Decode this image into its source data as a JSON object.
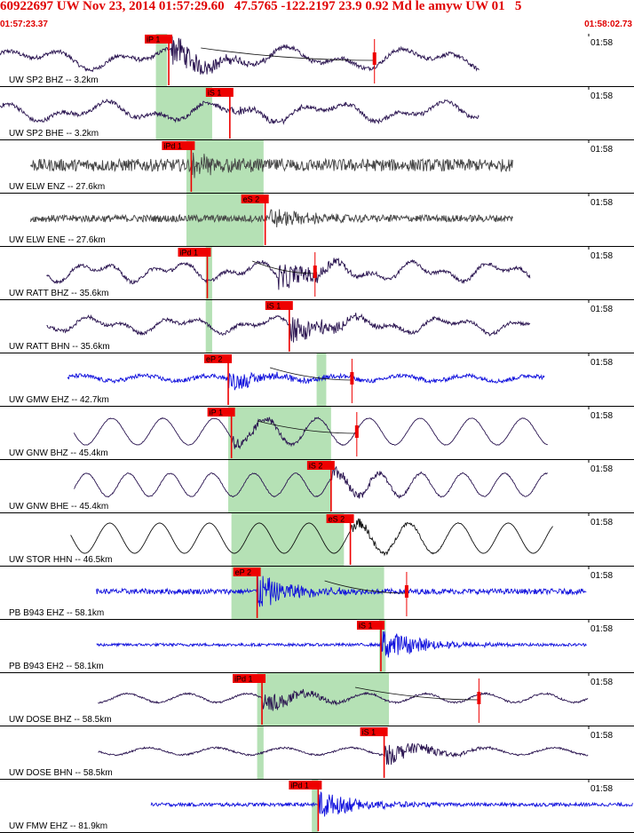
{
  "header": {
    "title": "60922697 UW Nov 23, 2014 01:57:29.60   47.5765 -122.2197 23.9 0.92 Md le amyw UW 01   5",
    "start_time": "01:57:23.37",
    "end_time": "01:58:02.73"
  },
  "chart_data": {
    "type": "line",
    "title": "60922697 UW Nov 23, 2014 01:57:29.60   47.5765 -122.2197 23.9 0.92 Md le amyw UW 01   5",
    "xlabel": "",
    "ylabel": "",
    "x_start": "01:57:23.37",
    "x_end": "01:58:02.73",
    "xlim_seconds": [
      0,
      39.36
    ],
    "tick_label": "01:58",
    "tick_second": 36.63,
    "colors": {
      "dark": "#2a1450",
      "gray": "#444444",
      "blue": "#1010dd",
      "black": "#111111",
      "pick": "#ee0000",
      "window": "#a8dca8"
    },
    "traces": [
      {
        "label": "UW SP2 BHZ -- 3.2km",
        "color": "dark",
        "start": 0.0,
        "end": 29.8,
        "noise": 0.12,
        "waves": [
          [
            8,
            0.35,
            0
          ],
          [
            3.5,
            0.3,
            1
          ]
        ],
        "event_t": 10.6,
        "event_amp": 0.9,
        "s_window": [
          9.7,
          10.4
        ],
        "pick": {
          "label": "iP 1",
          "t": 10.5
        },
        "picks2": [
          {
            "t": 23.3
          }
        ],
        "coda_t": 12.5,
        "coda_end": 23.3
      },
      {
        "label": "UW SP2 BHE -- 3.2km",
        "color": "dark",
        "start": 0.0,
        "end": 29.8,
        "noise": 0.12,
        "waves": [
          [
            7,
            0.35,
            2
          ],
          [
            3,
            0.25,
            0
          ]
        ],
        "event_t": 14.3,
        "event_amp": 0.25,
        "s_window": [
          9.7,
          13.2
        ],
        "pick": {
          "label": "iS 1",
          "t": 14.3
        }
      },
      {
        "label": "UW ELW ENZ -- 27.6km",
        "color": "gray",
        "start": 1.9,
        "end": 31.9,
        "noise": 0.35,
        "waves": [],
        "event_t": 11.9,
        "event_amp": 0.5,
        "s_window": [
          11.6,
          16.4
        ],
        "pick": {
          "label": "iPd 1",
          "t": 11.9
        }
      },
      {
        "label": "UW ELW ENE -- 27.6km",
        "color": "gray",
        "start": 1.9,
        "end": 31.9,
        "noise": 0.2,
        "waves": [],
        "event_t": 16.8,
        "event_amp": 0.5,
        "s_window": [
          11.6,
          16.4
        ],
        "pick": {
          "label": "eS 2",
          "t": 16.5
        }
      },
      {
        "label": "UW RATT BHZ -- 35.6km",
        "color": "dark",
        "start": 2.9,
        "end": 33.0,
        "noise": 0.1,
        "waves": [
          [
            5,
            0.35,
            0.4
          ],
          [
            2.3,
            0.25,
            1
          ]
        ],
        "event_t": 17.3,
        "event_amp": 0.8,
        "s_window": [
          12.8,
          13.2
        ],
        "pick": {
          "label": "iPd 1",
          "t": 12.9
        },
        "picks2": [
          {
            "t": 19.6
          }
        ],
        "coda_t": 15.7,
        "coda_end": 19.6
      },
      {
        "label": "UW RATT BHN -- 35.6km",
        "color": "dark",
        "start": 2.9,
        "end": 33.0,
        "noise": 0.1,
        "waves": [
          [
            5.5,
            0.3,
            1.2
          ],
          [
            2.4,
            0.2,
            0.2
          ]
        ],
        "event_t": 18.0,
        "event_amp": 0.8,
        "s_window": [
          12.8,
          13.2
        ],
        "pick": {
          "label": "iS 1",
          "t": 18.0
        }
      },
      {
        "label": "UW GMW EHZ -- 42.7km",
        "color": "blue",
        "start": 4.2,
        "end": 33.9,
        "noise": 0.12,
        "waves": [
          [
            4,
            0.15,
            0
          ]
        ],
        "event_t": 14.2,
        "event_amp": 0.5,
        "s_window": [
          19.7,
          20.3
        ],
        "pick": {
          "label": "eP 2",
          "t": 14.2
        },
        "picks2": [
          {
            "t": 21.9
          }
        ],
        "coda_t": 16.8,
        "coda_end": 21.9
      },
      {
        "label": "UW GNW BHZ -- 45.4km",
        "color": "dark",
        "start": 4.6,
        "end": 34.1,
        "noise": 0.02,
        "waves": [
          [
            3.2,
            0.75,
            0.5
          ]
        ],
        "event_t": 14.4,
        "event_amp": 0.4,
        "s_window": [
          14.2,
          20.6
        ],
        "pick": {
          "label": "iP 1",
          "t": 14.4
        },
        "picks2": [
          {
            "t": 22.2
          }
        ],
        "coda_t": 16.0,
        "coda_end": 22.2
      },
      {
        "label": "UW GNW BHE -- 45.4km",
        "color": "dark",
        "start": 4.6,
        "end": 34.1,
        "noise": 0.03,
        "waves": [
          [
            2.6,
            0.65,
            1.1
          ]
        ],
        "event_t": 20.6,
        "event_amp": 0.4,
        "s_window": [
          14.2,
          20.6
        ],
        "pick": {
          "label": "iS 2",
          "t": 20.6
        }
      },
      {
        "label": "UW STOR HHN -- 46.5km",
        "color": "black",
        "start": 4.4,
        "end": 34.4,
        "noise": 0.0,
        "waves": [
          [
            3.1,
            0.85,
            0.3
          ]
        ],
        "event_t": 21.8,
        "event_amp": 0.3,
        "s_window": [
          14.4,
          21.4
        ],
        "pick": {
          "label": "eS 2",
          "t": 21.8
        }
      },
      {
        "label": "PB B943 EHZ -- 58.1km",
        "color": "blue",
        "start": 6.0,
        "end": 36.5,
        "noise": 0.15,
        "waves": [],
        "event_t": 16.0,
        "event_amp": 0.9,
        "s_window": [
          14.4,
          23.9
        ],
        "pick": {
          "label": "eP 2",
          "t": 16.0
        },
        "picks2": [
          {
            "t": 25.3
          }
        ],
        "coda_t": 20.2,
        "coda_end": 25.3
      },
      {
        "label": "PB B943 EH2 -- 58.1km",
        "color": "blue",
        "start": 6.0,
        "end": 36.5,
        "noise": 0.08,
        "waves": [],
        "event_t": 23.7,
        "event_amp": 0.9,
        "s_window": [
          23.6,
          24.0
        ],
        "pick": {
          "label": "iS 1",
          "t": 23.7
        }
      },
      {
        "label": "UW DOSE BHZ -- 58.5km",
        "color": "dark",
        "start": 6.1,
        "end": 36.6,
        "noise": 0.05,
        "waves": [
          [
            3.7,
            0.25,
            0.6
          ]
        ],
        "event_t": 16.3,
        "event_amp": 0.6,
        "s_window": [
          16.0,
          24.2
        ],
        "pick": {
          "label": "iPd 1",
          "t": 16.3
        },
        "picks2": [
          {
            "t": 29.8
          }
        ],
        "coda_t": 22.1,
        "coda_end": 29.8
      },
      {
        "label": "UW DOSE BHN -- 58.5km",
        "color": "dark",
        "start": 6.1,
        "end": 36.6,
        "noise": 0.05,
        "waves": [
          [
            4.2,
            0.2,
            0.3
          ]
        ],
        "event_t": 23.9,
        "event_amp": 0.6,
        "s_window": [
          16.0,
          16.4
        ],
        "pick": {
          "label": "iS 1",
          "t": 23.9
        }
      },
      {
        "label": "UW FMW EHZ -- 81.9km",
        "color": "blue",
        "start": 9.4,
        "end": 39.36,
        "noise": 0.1,
        "waves": [],
        "event_t": 19.8,
        "event_amp": 0.8,
        "s_window": [
          19.4,
          19.8
        ],
        "pick": {
          "label": "iPd 1",
          "t": 19.8
        }
      }
    ]
  }
}
